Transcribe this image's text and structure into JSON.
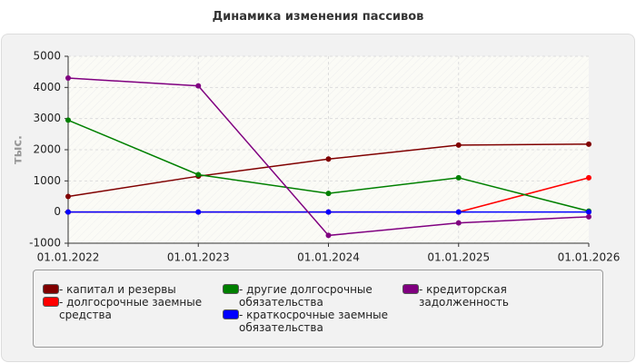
{
  "chart_data": {
    "type": "line",
    "title": "Динамика изменения пассивов",
    "y_label": "тыс.",
    "categories": [
      "01.01.2022",
      "01.01.2023",
      "01.01.2024",
      "01.01.2025",
      "01.01.2026"
    ],
    "ylim": [
      -1000,
      5000
    ],
    "yticks": [
      -1000,
      0,
      1000,
      2000,
      3000,
      4000,
      5000
    ],
    "grid": true,
    "series": [
      {
        "name": "- капитал и резервы",
        "color": "#800000",
        "values": [
          500,
          1150,
          1700,
          2150,
          2180
        ]
      },
      {
        "name": "- долгосрочные заемные средства",
        "color": "#ff0000",
        "values": [
          0,
          0,
          0,
          0,
          1100
        ]
      },
      {
        "name": "- другие долгосрочные обязательства",
        "color": "#008000",
        "values": [
          2950,
          1200,
          600,
          1100,
          30
        ]
      },
      {
        "name": "- краткосрочные заемные обязательства",
        "color": "#0000ff",
        "values": [
          0,
          0,
          0,
          0,
          0
        ]
      },
      {
        "name": "- кредиторская задолженность",
        "color": "#800080",
        "values": [
          4300,
          4050,
          -750,
          -350,
          -150
        ]
      }
    ]
  }
}
